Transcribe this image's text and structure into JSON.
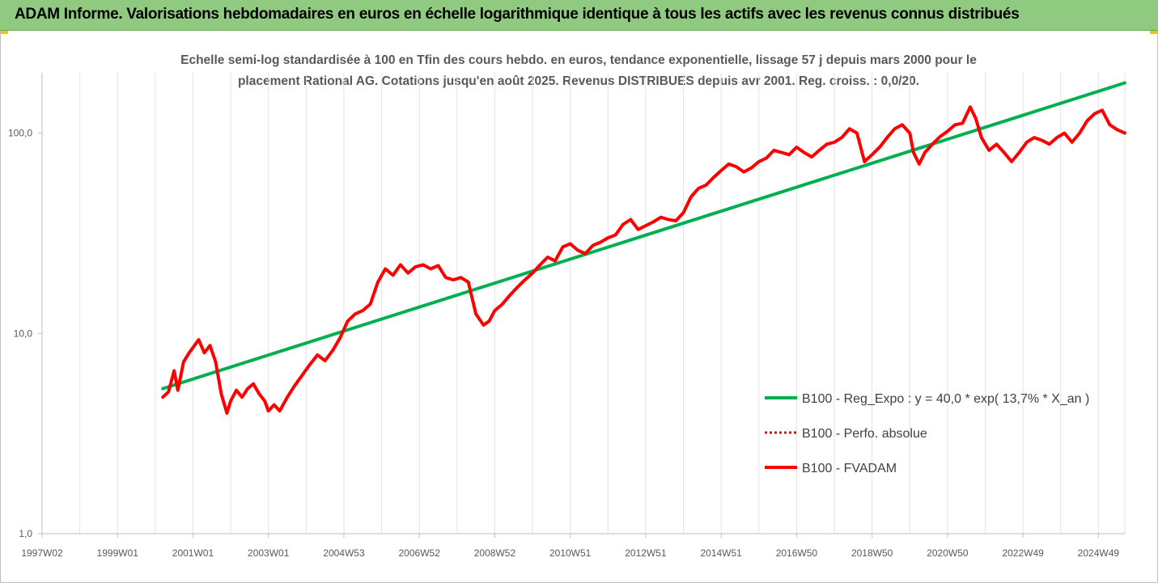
{
  "header": {
    "title": "ADAM Informe. Valorisations hebdomadaires en euros en échelle logarithmique identique à tous les actifs avec les revenus connus distribués"
  },
  "chart_data": {
    "type": "line",
    "subtitle_line1": "Echelle semi-log standardisée à 100 en Tfin des cours hebdo. en euros, tendance exponentielle, lissage 57 j depuis mars 2000 pour le",
    "subtitle_line2": "placement Rational AG. Cotations jusqu'en août 2025. Revenus DISTRIBUES depuis avr 2001. Reg. croiss. : 0,0/20.",
    "y_scale": "log",
    "ylim": [
      1,
      200
    ],
    "y_ticks": [
      {
        "value": 1,
        "label": "1,0"
      },
      {
        "value": 10,
        "label": "10,0"
      },
      {
        "value": 100,
        "label": "100,0"
      }
    ],
    "xlim": [
      1997.0,
      2025.7
    ],
    "x_ticks": [
      {
        "value": 1997.0,
        "label": "1997W02"
      },
      {
        "value": 1999.0,
        "label": "1999W01"
      },
      {
        "value": 2001.0,
        "label": "2001W01"
      },
      {
        "value": 2003.0,
        "label": "2003W01"
      },
      {
        "value": 2005.0,
        "label": "2004W53"
      },
      {
        "value": 2007.0,
        "label": "2006W52"
      },
      {
        "value": 2009.0,
        "label": "2008W52"
      },
      {
        "value": 2011.0,
        "label": "2010W51"
      },
      {
        "value": 2013.0,
        "label": "2012W51"
      },
      {
        "value": 2015.0,
        "label": "2014W51"
      },
      {
        "value": 2017.0,
        "label": "2016W50"
      },
      {
        "value": 2019.0,
        "label": "2018W50"
      },
      {
        "value": 2021.0,
        "label": "2020W50"
      },
      {
        "value": 2023.0,
        "label": "2022W49"
      },
      {
        "value": 2025.0,
        "label": "2024W49"
      }
    ],
    "grid": "vertical",
    "legend_position": "right",
    "series": [
      {
        "name": "B100 - Reg_Expo : y = 40,0 * exp( 13,7% *  X_an )",
        "color": "#00b050",
        "style": "solid",
        "x": [
          2000.2,
          2025.7
        ],
        "y": [
          5.3,
          178
        ]
      },
      {
        "name": "B100 - Perfo. absolue",
        "color": "#ff0000",
        "style": "dotted",
        "x": [],
        "y": []
      },
      {
        "name": "B100 - FVADAM",
        "color": "#ff0000",
        "style": "solid",
        "x": [
          2000.2,
          2000.35,
          2000.5,
          2000.6,
          2000.75,
          2000.9,
          2001.0,
          2001.15,
          2001.3,
          2001.45,
          2001.6,
          2001.75,
          2001.9,
          2002.0,
          2002.15,
          2002.3,
          2002.45,
          2002.6,
          2002.75,
          2002.9,
          2003.0,
          2003.15,
          2003.3,
          2003.5,
          2003.7,
          2003.9,
          2004.1,
          2004.3,
          2004.5,
          2004.7,
          2004.9,
          2005.1,
          2005.3,
          2005.5,
          2005.7,
          2005.9,
          2006.1,
          2006.3,
          2006.5,
          2006.7,
          2006.9,
          2007.1,
          2007.3,
          2007.5,
          2007.7,
          2007.9,
          2008.1,
          2008.3,
          2008.5,
          2008.7,
          2008.85,
          2009.0,
          2009.2,
          2009.4,
          2009.6,
          2009.8,
          2010.0,
          2010.2,
          2010.4,
          2010.6,
          2010.8,
          2011.0,
          2011.2,
          2011.4,
          2011.6,
          2011.8,
          2012.0,
          2012.2,
          2012.4,
          2012.6,
          2012.8,
          2013.0,
          2013.2,
          2013.4,
          2013.6,
          2013.8,
          2014.0,
          2014.2,
          2014.4,
          2014.6,
          2014.8,
          2015.0,
          2015.2,
          2015.4,
          2015.6,
          2015.8,
          2016.0,
          2016.2,
          2016.4,
          2016.6,
          2016.8,
          2017.0,
          2017.2,
          2017.4,
          2017.6,
          2017.8,
          2018.0,
          2018.2,
          2018.4,
          2018.6,
          2018.8,
          2019.0,
          2019.2,
          2019.4,
          2019.6,
          2019.8,
          2020.0,
          2020.1,
          2020.25,
          2020.4,
          2020.6,
          2020.8,
          2021.0,
          2021.2,
          2021.4,
          2021.6,
          2021.75,
          2021.9,
          2022.1,
          2022.3,
          2022.5,
          2022.7,
          2022.9,
          2023.1,
          2023.3,
          2023.5,
          2023.7,
          2023.9,
          2024.1,
          2024.3,
          2024.5,
          2024.7,
          2024.9,
          2025.1,
          2025.3,
          2025.5,
          2025.7
        ],
        "y": [
          4.8,
          5.1,
          6.5,
          5.2,
          7.2,
          8.0,
          8.5,
          9.3,
          8.0,
          8.7,
          7.2,
          5.0,
          4.0,
          4.6,
          5.2,
          4.8,
          5.3,
          5.6,
          5.0,
          4.6,
          4.1,
          4.4,
          4.1,
          4.8,
          5.5,
          6.2,
          7.0,
          7.8,
          7.3,
          8.2,
          9.5,
          11.5,
          12.5,
          13.0,
          14.0,
          18.0,
          21.0,
          19.5,
          22.0,
          20.0,
          21.5,
          22.0,
          21.0,
          21.8,
          19.0,
          18.5,
          19.0,
          18.0,
          12.5,
          11.0,
          11.5,
          13.0,
          14.0,
          15.5,
          17.0,
          18.5,
          20.0,
          22.0,
          24.0,
          23.0,
          27.0,
          28.0,
          26.0,
          25.0,
          27.5,
          28.5,
          30.0,
          31.0,
          35.0,
          37.0,
          33.0,
          34.5,
          36.0,
          38.0,
          37.0,
          36.5,
          40.0,
          48.0,
          53.0,
          55.0,
          60.0,
          65.0,
          70.0,
          68.0,
          64.0,
          67.0,
          72.0,
          75.0,
          82.0,
          80.0,
          78.0,
          85.0,
          80.0,
          76.0,
          82.0,
          88.0,
          90.0,
          95.0,
          105.0,
          100.0,
          72.0,
          78.0,
          85.0,
          95.0,
          105.0,
          110.0,
          100.0,
          80.0,
          70.0,
          80.0,
          88.0,
          96.0,
          102.0,
          110.0,
          112.0,
          135.0,
          118.0,
          95.0,
          82.0,
          88.0,
          80.0,
          72.0,
          80.0,
          90.0,
          95.0,
          92.0,
          88.0,
          95.0,
          100.0,
          90.0,
          100.0,
          115.0,
          125.0,
          130.0,
          110.0,
          104.0,
          100.0
        ]
      }
    ]
  }
}
